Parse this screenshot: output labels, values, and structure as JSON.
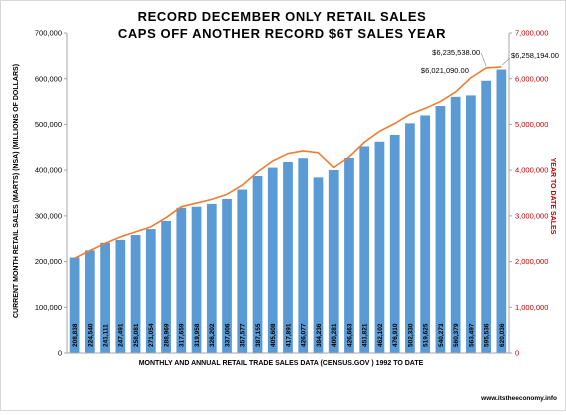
{
  "chart_data": {
    "type": "bar",
    "title": "RECORD DECEMBER ONLY RETAIL SALES",
    "subtitle": "CAPS OFF ANOTHER RECORD $6T SALES YEAR",
    "xlabel": "MONTHLY AND ANNUAL RETAIL TRADE SALES DATA (CENSUS.GOV ) 1992 TO DATE",
    "ylabel": "CURRENT MONTH RETAIL SALES (MARTS) (NSA)  (MILLIONS OF DOLLARS)",
    "y2label": "YEAR TO DATE SALES",
    "ylim": [
      0,
      700000
    ],
    "y2lim": [
      0,
      7000000
    ],
    "y_ticks": [
      "0",
      "100,000",
      "200,000",
      "300,000",
      "400,000",
      "500,000",
      "600,000",
      "700,000"
    ],
    "y2_ticks": [
      "0",
      "1,000,000",
      "2,000,000",
      "3,000,000",
      "4,000,000",
      "5,000,000",
      "6,000,000",
      "7,000,000"
    ],
    "grid": false,
    "legend": "none",
    "series": [
      {
        "type": "bar",
        "axis": "left",
        "values": [
          208838,
          224540,
          241111,
          247491,
          258081,
          271054,
          288969,
          317659,
          319958,
          326202,
          337006,
          357577,
          387155,
          405608,
          417891,
          426077,
          384236,
          400281,
          426663,
          451821,
          462102,
          476910,
          502330,
          519625,
          540273,
          560379,
          563497,
          595536,
          620036
        ],
        "labels": [
          "208,838",
          "224,540",
          "241,111",
          "247,491",
          "258,081",
          "271,054",
          "288,969",
          "317,659",
          "319,958",
          "326,202",
          "337,006",
          "357,577",
          "387,155",
          "405,608",
          "417,891",
          "426,077",
          "384,236",
          "400,281",
          "426,663",
          "451,821",
          "462,102",
          "476,910",
          "502,330",
          "519,625",
          "540,273",
          "560,379",
          "563,497",
          "595,536",
          "620,036"
        ]
      },
      {
        "type": "line",
        "axis": "right",
        "values": [
          2070000,
          2240000,
          2400000,
          2540000,
          2650000,
          2760000,
          2960000,
          3200000,
          3280000,
          3360000,
          3470000,
          3670000,
          3960000,
          4200000,
          4360000,
          4420000,
          4380000,
          4060000,
          4290000,
          4610000,
          4850000,
          5020000,
          5220000,
          5350000,
          5500000,
          5710000,
          6021090,
          6235538,
          6258194
        ]
      }
    ],
    "annotations": [
      "$6,021,090.00",
      "$6,235,538.00",
      "$6,258,194.00"
    ]
  },
  "colors": {
    "bar": "#5b9bd5",
    "line": "#ed7d31",
    "right_axis": "#c00000",
    "axis": "#a6a6a6"
  },
  "footer": {
    "source": "www.itstheeconomy.info"
  }
}
